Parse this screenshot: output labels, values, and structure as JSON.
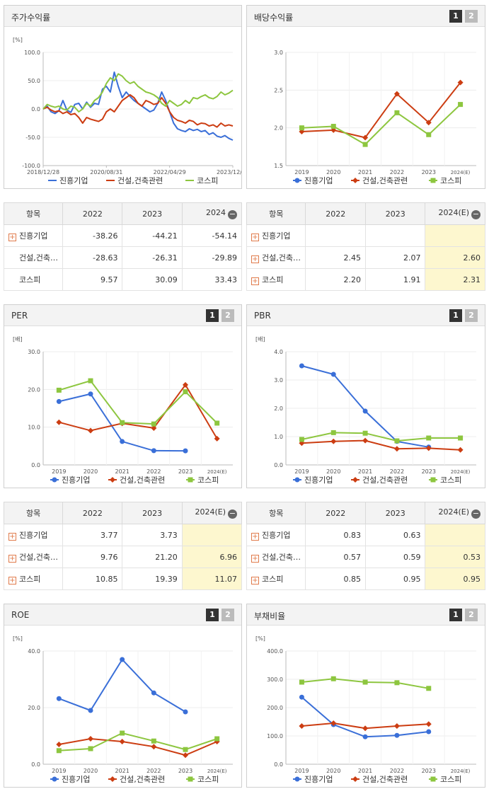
{
  "panels": {
    "stock": {
      "title": "주가수익률"
    },
    "dividend": {
      "title": "배당수익률",
      "page1": "1",
      "page2": "2"
    },
    "per": {
      "title": "PER",
      "page1": "1",
      "page2": "2"
    },
    "pbr": {
      "title": "PBR",
      "page1": "1",
      "page2": "2"
    },
    "roe": {
      "title": "ROE",
      "page1": "1",
      "page2": "2"
    },
    "debt": {
      "title": "부채비율",
      "page1": "1",
      "page2": "2"
    }
  },
  "colors": {
    "blue": "#3a6fd8",
    "red": "#cc3d12",
    "green": "#8dc63f"
  },
  "chart_data": [
    {
      "id": "stock",
      "type": "line",
      "title": "주가수익률",
      "ylabel": "[%]",
      "ylim": [
        -100,
        100
      ],
      "yticks": [
        "100.0",
        "50.0",
        "0.0",
        "-50.0",
        "-100.0"
      ],
      "xtick_labels": [
        "2018/12/28",
        "2020/08/31",
        "2022/04/29",
        "2023/12/28"
      ],
      "legend": [
        "진흥기업",
        "건설,건축관련",
        "코스피"
      ],
      "legend_position": "bottom",
      "series": [
        {
          "name": "진흥기업",
          "color": "#3a6fd8",
          "values": [
            0,
            5,
            -5,
            -8,
            -3,
            15,
            -2,
            -6,
            8,
            10,
            0,
            12,
            3,
            10,
            8,
            35,
            40,
            30,
            65,
            40,
            20,
            30,
            22,
            15,
            10,
            5,
            0,
            -5,
            -2,
            10,
            30,
            15,
            -5,
            -25,
            -35,
            -38,
            -40,
            -35,
            -38,
            -36,
            -40,
            -38,
            -45,
            -42,
            -48,
            -50,
            -47,
            -52,
            -55
          ]
        },
        {
          "name": "건설,건축관련",
          "color": "#cc3d12",
          "values": [
            0,
            3,
            -2,
            -5,
            -3,
            -8,
            -5,
            -10,
            -8,
            -15,
            -25,
            -15,
            -18,
            -20,
            -22,
            -18,
            -5,
            0,
            -5,
            5,
            15,
            20,
            25,
            20,
            10,
            5,
            15,
            12,
            8,
            10,
            20,
            10,
            -5,
            -15,
            -20,
            -22,
            -25,
            -20,
            -22,
            -28,
            -25,
            -26,
            -30,
            -28,
            -32,
            -25,
            -30,
            -28,
            -30
          ]
        },
        {
          "name": "코스피",
          "color": "#8dc63f",
          "values": [
            0,
            8,
            5,
            3,
            5,
            0,
            -2,
            5,
            3,
            -5,
            0,
            10,
            5,
            15,
            20,
            30,
            45,
            55,
            50,
            62,
            58,
            50,
            45,
            48,
            40,
            35,
            30,
            28,
            25,
            20,
            10,
            5,
            15,
            10,
            5,
            8,
            15,
            10,
            20,
            18,
            22,
            25,
            20,
            18,
            22,
            30,
            25,
            28,
            33
          ]
        }
      ]
    },
    {
      "id": "dividend",
      "type": "line",
      "title": "배당수익률",
      "ylim": [
        1.5,
        3.0
      ],
      "yticks": [
        "3.0",
        "2.5",
        "2.0",
        "1.5"
      ],
      "categories": [
        "2019",
        "2020",
        "2021",
        "2022",
        "2023",
        "2024(E)"
      ],
      "legend": [
        "진흥기업",
        "건설,건축관련",
        "코스피"
      ],
      "legend_position": "bottom",
      "series": [
        {
          "name": "진흥기업",
          "color": "#3a6fd8",
          "values": [
            null,
            null,
            null,
            null,
            null,
            null
          ]
        },
        {
          "name": "건설,건축관련",
          "color": "#cc3d12",
          "values": [
            1.95,
            1.97,
            1.87,
            2.45,
            2.07,
            2.6
          ]
        },
        {
          "name": "코스피",
          "color": "#8dc63f",
          "values": [
            2.0,
            2.02,
            1.78,
            2.2,
            1.91,
            2.31
          ]
        }
      ]
    },
    {
      "id": "per",
      "type": "line",
      "title": "PER",
      "ylabel": "[배]",
      "ylim": [
        0,
        30
      ],
      "yticks": [
        "30.0",
        "20.0",
        "10.0",
        "0.0"
      ],
      "categories": [
        "2019",
        "2020",
        "2021",
        "2022",
        "2023",
        "2024(E)"
      ],
      "legend": [
        "진흥기업",
        "건설,건축관련",
        "코스피"
      ],
      "legend_position": "bottom",
      "series": [
        {
          "name": "진흥기업",
          "color": "#3a6fd8",
          "values": [
            16.8,
            18.8,
            6.2,
            3.77,
            3.73,
            null
          ]
        },
        {
          "name": "건설,건축관련",
          "color": "#cc3d12",
          "values": [
            11.3,
            9.1,
            11.0,
            9.76,
            21.2,
            6.96
          ]
        },
        {
          "name": "코스피",
          "color": "#8dc63f",
          "values": [
            19.8,
            22.3,
            11.2,
            10.85,
            19.39,
            11.07
          ]
        }
      ]
    },
    {
      "id": "pbr",
      "type": "line",
      "title": "PBR",
      "ylabel": "[배]",
      "ylim": [
        0,
        4
      ],
      "yticks": [
        "4.0",
        "3.0",
        "2.0",
        "1.0",
        "0.0"
      ],
      "categories": [
        "2019",
        "2020",
        "2021",
        "2022",
        "2023",
        "2024(E)"
      ],
      "legend": [
        "진흥기업",
        "건설,건축관련",
        "코스피"
      ],
      "legend_position": "bottom",
      "series": [
        {
          "name": "진흥기업",
          "color": "#3a6fd8",
          "values": [
            3.5,
            3.2,
            1.9,
            0.83,
            0.63,
            null
          ]
        },
        {
          "name": "건설,건축관련",
          "color": "#cc3d12",
          "values": [
            0.77,
            0.83,
            0.86,
            0.57,
            0.59,
            0.53
          ]
        },
        {
          "name": "코스피",
          "color": "#8dc63f",
          "values": [
            0.9,
            1.14,
            1.12,
            0.85,
            0.95,
            0.95
          ]
        }
      ]
    },
    {
      "id": "roe",
      "type": "line",
      "title": "ROE",
      "ylabel": "[%]",
      "ylim": [
        0,
        40
      ],
      "yticks": [
        "40.0",
        "20.0",
        "0.0"
      ],
      "categories": [
        "2019",
        "2020",
        "2021",
        "2022",
        "2023",
        "2024(E)"
      ],
      "legend": [
        "진흥기업",
        "건설,건축관련",
        "코스피"
      ],
      "legend_position": "bottom",
      "series": [
        {
          "name": "진흥기업",
          "color": "#3a6fd8",
          "values": [
            23.2,
            19.0,
            37.0,
            25.2,
            18.5,
            null
          ]
        },
        {
          "name": "건설,건축관련",
          "color": "#cc3d12",
          "values": [
            7.0,
            9.0,
            8.0,
            6.2,
            3.2,
            8.0
          ]
        },
        {
          "name": "코스피",
          "color": "#8dc63f",
          "values": [
            4.8,
            5.5,
            11.0,
            8.2,
            5.2,
            9.0
          ]
        }
      ]
    },
    {
      "id": "debt",
      "type": "line",
      "title": "부채비율",
      "ylabel": "[%]",
      "ylim": [
        0,
        400
      ],
      "yticks": [
        "400.0",
        "300.0",
        "200.0",
        "100.0",
        "0.0"
      ],
      "categories": [
        "2019",
        "2020",
        "2021",
        "2022",
        "2023",
        "2024(E)"
      ],
      "legend": [
        "진흥기업",
        "건설,건축관련",
        "코스피"
      ],
      "legend_position": "bottom",
      "series": [
        {
          "name": "진흥기업",
          "color": "#3a6fd8",
          "values": [
            237,
            140,
            97,
            102,
            115,
            null
          ]
        },
        {
          "name": "건설,건축관련",
          "color": "#cc3d12",
          "values": [
            135,
            145,
            127,
            135,
            142,
            null
          ]
        },
        {
          "name": "코스피",
          "color": "#8dc63f",
          "values": [
            290,
            302,
            290,
            288,
            268,
            null
          ]
        }
      ]
    }
  ],
  "tables": {
    "stock": {
      "header": [
        "항목",
        "2022",
        "2023",
        "2024"
      ],
      "rows": [
        {
          "name": "진흥기업",
          "values": [
            "-38.26",
            "-44.21",
            "-54.14"
          ]
        },
        {
          "name": "건설,건축…",
          "values": [
            "-28.63",
            "-26.31",
            "-29.89"
          ]
        },
        {
          "name": "코스피",
          "values": [
            "9.57",
            "30.09",
            "33.43"
          ]
        }
      ]
    },
    "dividend": {
      "header": [
        "항목",
        "2022",
        "2023",
        "2024(E)"
      ],
      "rows": [
        {
          "name": "진흥기업",
          "values": [
            "",
            "",
            ""
          ]
        },
        {
          "name": "건설,건축…",
          "values": [
            "2.45",
            "2.07",
            "2.60"
          ]
        },
        {
          "name": "코스피",
          "values": [
            "2.20",
            "1.91",
            "2.31"
          ]
        }
      ]
    },
    "per": {
      "header": [
        "항목",
        "2022",
        "2023",
        "2024(E)"
      ],
      "rows": [
        {
          "name": "진흥기업",
          "values": [
            "3.77",
            "3.73",
            ""
          ]
        },
        {
          "name": "건설,건축…",
          "values": [
            "9.76",
            "21.20",
            "6.96"
          ]
        },
        {
          "name": "코스피",
          "values": [
            "10.85",
            "19.39",
            "11.07"
          ]
        }
      ]
    },
    "pbr": {
      "header": [
        "항목",
        "2022",
        "2023",
        "2024(E)"
      ],
      "rows": [
        {
          "name": "진흥기업",
          "values": [
            "0.83",
            "0.63",
            ""
          ]
        },
        {
          "name": "건설,건축…",
          "values": [
            "0.57",
            "0.59",
            "0.53"
          ]
        },
        {
          "name": "코스피",
          "values": [
            "0.85",
            "0.95",
            "0.95"
          ]
        }
      ]
    }
  },
  "icons": {
    "expand": "plus-box-icon",
    "collapse": "minus-circle-icon"
  }
}
